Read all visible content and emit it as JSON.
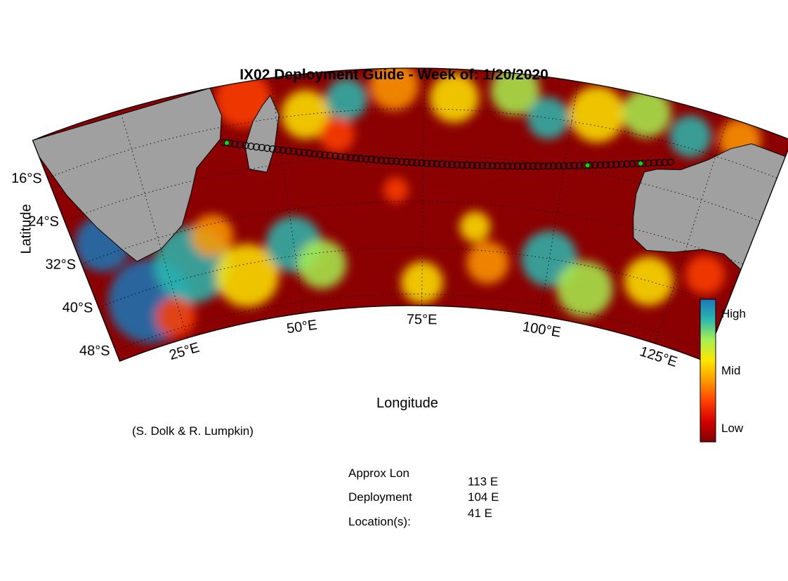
{
  "title": "IX02 Deployment Guide - Week of: 1/20/2020",
  "xlabel": "Longitude",
  "ylabel": "Latitude",
  "credit": "(S. Dolk & R. Lumpkin)",
  "lon_ticks": [
    {
      "deg": 25,
      "label": "25°E"
    },
    {
      "deg": 50,
      "label": "50°E"
    },
    {
      "deg": 75,
      "label": "75°E"
    },
    {
      "deg": 100,
      "label": "100°E"
    },
    {
      "deg": 125,
      "label": "125°E"
    }
  ],
  "lat_ticks": [
    {
      "deg": -16,
      "label": "16°S"
    },
    {
      "deg": -24,
      "label": "24°S"
    },
    {
      "deg": -32,
      "label": "32°S"
    },
    {
      "deg": -40,
      "label": "40°S"
    },
    {
      "deg": -48,
      "label": "48°S"
    }
  ],
  "colorbar": {
    "labels": [
      "High",
      "Mid",
      "Low"
    ],
    "colors": [
      "#7f0000",
      "#d40000",
      "#ff4000",
      "#ff9a00",
      "#ffe600",
      "#a8f050",
      "#2ab8b0",
      "#1a78b8"
    ]
  },
  "colors": {
    "land": "#a0a0a0",
    "low": "#8b0000",
    "track_point": "#00e000"
  },
  "deployment": {
    "heading_line1": "Approx Lon",
    "heading_line2": "Deployment",
    "heading_line3": "Location(s):",
    "locations": [
      "113 E",
      "104 E",
      "41 E"
    ]
  }
}
